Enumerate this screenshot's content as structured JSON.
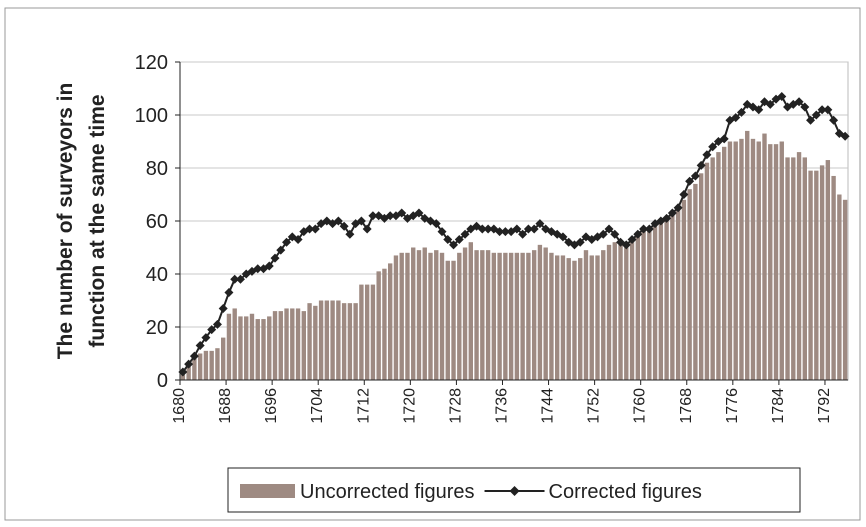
{
  "chart_data": {
    "type": "bar-line",
    "y_label_lines": [
      "The number of surveyors in",
      "function at the same time"
    ],
    "categories": [
      "1680",
      null,
      null,
      null,
      null,
      null,
      null,
      null,
      "1688",
      null,
      null,
      null,
      null,
      null,
      null,
      null,
      "1696",
      null,
      null,
      null,
      null,
      null,
      null,
      null,
      "1704",
      null,
      null,
      null,
      null,
      null,
      null,
      null,
      "1712",
      null,
      null,
      null,
      null,
      null,
      null,
      null,
      "1720",
      null,
      null,
      null,
      null,
      null,
      null,
      null,
      "1728",
      null,
      null,
      null,
      null,
      null,
      null,
      null,
      "1736",
      null,
      null,
      null,
      null,
      null,
      null,
      null,
      "1744",
      null,
      null,
      null,
      null,
      null,
      null,
      null,
      "1752",
      null,
      null,
      null,
      null,
      null,
      null,
      null,
      "1760",
      null,
      null,
      null,
      null,
      null,
      null,
      null,
      "1768",
      null,
      null,
      null,
      null,
      null,
      null,
      null,
      "1776",
      null,
      null,
      null,
      null,
      null,
      null,
      null,
      "1784",
      null,
      null,
      null,
      null,
      null,
      null,
      null,
      "1792",
      null,
      null,
      null
    ],
    "series": [
      {
        "name": "Uncorrected figures",
        "kind": "bar",
        "color": "#9e8a82",
        "values": [
          2,
          5,
          8,
          10,
          11,
          11,
          12,
          16,
          25,
          27,
          24,
          24,
          25,
          23,
          23,
          24,
          26,
          26,
          27,
          27,
          27,
          26,
          29,
          28,
          30,
          30,
          30,
          30,
          29,
          29,
          29,
          36,
          36,
          36,
          41,
          42,
          44,
          47,
          48,
          48,
          50,
          49,
          50,
          48,
          49,
          48,
          45,
          45,
          48,
          50,
          52,
          49,
          49,
          49,
          48,
          48,
          48,
          48,
          48,
          48,
          48,
          49,
          51,
          50,
          48,
          47,
          47,
          46,
          45,
          46,
          49,
          47,
          47,
          49,
          51,
          52,
          51,
          50,
          52,
          54,
          56,
          57,
          58,
          60,
          61,
          63,
          65,
          68,
          72,
          74,
          78,
          82,
          84,
          86,
          88,
          90,
          90,
          91,
          94,
          91,
          90,
          93,
          89,
          89,
          90,
          84,
          84,
          86,
          84,
          79,
          79,
          81,
          83,
          77,
          70,
          68
        ]
      },
      {
        "name": "Corrected figures",
        "kind": "line",
        "color": "#222222",
        "values": [
          3,
          6,
          9,
          13,
          16,
          19,
          21,
          27,
          33,
          38,
          38,
          40,
          41,
          42,
          42,
          43,
          46,
          49,
          52,
          54,
          53,
          56,
          57,
          57,
          59,
          60,
          59,
          60,
          58,
          55,
          59,
          60,
          57,
          62,
          62,
          61,
          62,
          62,
          63,
          61,
          62,
          63,
          61,
          60,
          59,
          56,
          53,
          51,
          53,
          55,
          57,
          58,
          57,
          57,
          57,
          56,
          56,
          56,
          57,
          55,
          57,
          57,
          59,
          57,
          56,
          55,
          54,
          52,
          51,
          52,
          54,
          53,
          54,
          55,
          57,
          55,
          52,
          51,
          53,
          55,
          57,
          57,
          59,
          60,
          61,
          63,
          65,
          70,
          75,
          77,
          81,
          85,
          88,
          90,
          91,
          98,
          99,
          101,
          104,
          103,
          102,
          105,
          104,
          106,
          107,
          103,
          104,
          105,
          103,
          98,
          100,
          102,
          102,
          98,
          93,
          92
        ]
      }
    ],
    "ylim": [
      0,
      120
    ],
    "yticks": [
      0,
      20,
      40,
      60,
      80,
      100,
      120
    ],
    "grid": true
  }
}
